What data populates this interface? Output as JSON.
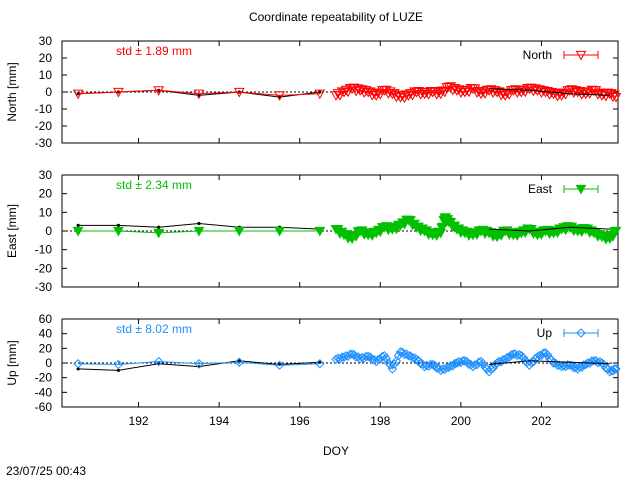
{
  "title": "Coordinate repeatability of LUZE",
  "timestamp": "23/07/25 00:43",
  "xlabel": "DOY",
  "x_ticks": [
    "192",
    "194",
    "196",
    "198",
    "200",
    "202"
  ],
  "x_tick_values": [
    192,
    194,
    196,
    198,
    200,
    202
  ],
  "xlim": [
    190.1,
    203.9
  ],
  "chart_data": [
    {
      "type": "line",
      "ylabel": "North [mm]",
      "ylim": [
        -30,
        30
      ],
      "y_ticks": [
        "30",
        "20",
        "10",
        "0",
        "-10",
        "-20",
        "-30"
      ],
      "y_tick_values": [
        30,
        20,
        10,
        0,
        -10,
        -20,
        -30
      ],
      "std_text": "std ± 1.89 mm",
      "legend": "North",
      "color": "#ff0000",
      "marker": "triangle-down-open",
      "daily_x": [
        190.5,
        191.5,
        192.5,
        193.5,
        194.5,
        195.5,
        196.5
      ],
      "daily_black": [
        -1,
        0,
        1,
        -2,
        0,
        -3,
        0
      ],
      "daily_colored": [
        -1,
        0,
        1,
        -1,
        0,
        -2,
        -1
      ],
      "series_x": [
        196.9,
        197.1,
        197.3,
        197.5,
        197.7,
        197.9,
        198.1,
        198.3,
        198.5,
        198.7,
        198.9,
        199.1,
        199.3,
        199.5,
        199.7,
        199.9,
        200.1,
        200.3,
        200.5,
        200.7,
        200.9,
        201.1,
        201.3,
        201.5,
        201.7,
        201.9,
        202.1,
        202.3,
        202.5,
        202.7,
        202.9,
        203.1,
        203.3,
        203.5,
        203.7,
        203.85
      ],
      "series_y": [
        -2,
        0,
        2,
        1,
        0,
        -2,
        1,
        -1,
        -3,
        -2,
        0,
        -1,
        0,
        -1,
        3,
        1,
        0,
        2,
        -1,
        1,
        0,
        -2,
        1,
        0,
        2,
        1,
        0,
        -1,
        -2,
        1,
        0,
        -1,
        1,
        -2,
        -1,
        -3
      ],
      "series_x2": [
        200.7,
        201.7,
        202.7,
        203.7
      ],
      "series_y2": [
        2,
        1,
        -1,
        -2
      ]
    },
    {
      "type": "line",
      "ylabel": "East [mm]",
      "ylim": [
        -30,
        30
      ],
      "y_ticks": [
        "30",
        "20",
        "10",
        "0",
        "-10",
        "-20",
        "-30"
      ],
      "y_tick_values": [
        30,
        20,
        10,
        0,
        -10,
        -20,
        -30
      ],
      "std_text": "std ± 2.34 mm",
      "legend": "East",
      "color": "#00c000",
      "marker": "triangle-down-filled",
      "daily_x": [
        190.5,
        191.5,
        192.5,
        193.5,
        194.5,
        195.5,
        196.5
      ],
      "daily_black": [
        3,
        3,
        2,
        4,
        2,
        2,
        1
      ],
      "daily_colored": [
        0,
        0,
        -1,
        0,
        0,
        0,
        0
      ],
      "series_x": [
        196.9,
        197.1,
        197.3,
        197.5,
        197.7,
        197.9,
        198.1,
        198.3,
        198.5,
        198.7,
        198.9,
        199.1,
        199.3,
        199.5,
        199.6,
        199.7,
        199.9,
        200.1,
        200.3,
        200.5,
        200.7,
        200.9,
        201.1,
        201.3,
        201.5,
        201.7,
        201.9,
        202.1,
        202.3,
        202.5,
        202.7,
        202.9,
        203.1,
        203.3,
        203.5,
        203.7,
        203.85
      ],
      "series_y": [
        1,
        -2,
        -4,
        0,
        -2,
        -1,
        2,
        1,
        3,
        6,
        2,
        0,
        -2,
        -1,
        7,
        5,
        1,
        -1,
        -2,
        0,
        -1,
        -3,
        0,
        -2,
        -1,
        1,
        -2,
        0,
        -1,
        1,
        2,
        0,
        1,
        -1,
        -3,
        -4,
        0
      ],
      "series_x2": [
        200.7,
        201.7,
        202.7,
        203.7
      ],
      "series_y2": [
        1,
        0,
        2,
        1
      ]
    },
    {
      "type": "line",
      "ylabel": "Up [mm]",
      "ylim": [
        -60,
        60
      ],
      "y_ticks": [
        "60",
        "40",
        "20",
        "0",
        "-20",
        "-40",
        "-60"
      ],
      "y_tick_values": [
        60,
        40,
        20,
        0,
        -20,
        -40,
        -60
      ],
      "std_text": "std ± 8.02 mm",
      "legend": "Up",
      "color": "#1e90ff",
      "marker": "diamond-open",
      "daily_x": [
        190.5,
        191.5,
        192.5,
        193.5,
        194.5,
        195.5,
        196.5
      ],
      "daily_black": [
        -8,
        -10,
        -1,
        -5,
        3,
        -2,
        1
      ],
      "daily_colored": [
        -1,
        -2,
        2,
        -1,
        1,
        -3,
        -1
      ],
      "series_x": [
        196.9,
        197.1,
        197.3,
        197.5,
        197.7,
        197.9,
        198.1,
        198.3,
        198.5,
        198.7,
        198.9,
        199.1,
        199.3,
        199.5,
        199.7,
        199.9,
        200.1,
        200.3,
        200.5,
        200.7,
        200.9,
        201.1,
        201.3,
        201.5,
        201.7,
        201.9,
        202.1,
        202.3,
        202.5,
        202.7,
        202.9,
        203.1,
        203.3,
        203.5,
        203.7,
        203.85
      ],
      "series_y": [
        5,
        8,
        12,
        6,
        9,
        2,
        10,
        -8,
        15,
        10,
        5,
        -5,
        -2,
        -10,
        -6,
        0,
        3,
        -5,
        2,
        -12,
        0,
        5,
        12,
        10,
        -3,
        8,
        14,
        0,
        -5,
        -3,
        -8,
        -2,
        3,
        0,
        -12,
        -8
      ],
      "series_x2": [
        200.7,
        201.7,
        202.7,
        203.7
      ],
      "series_y2": [
        -2,
        3,
        1,
        -1
      ]
    }
  ]
}
